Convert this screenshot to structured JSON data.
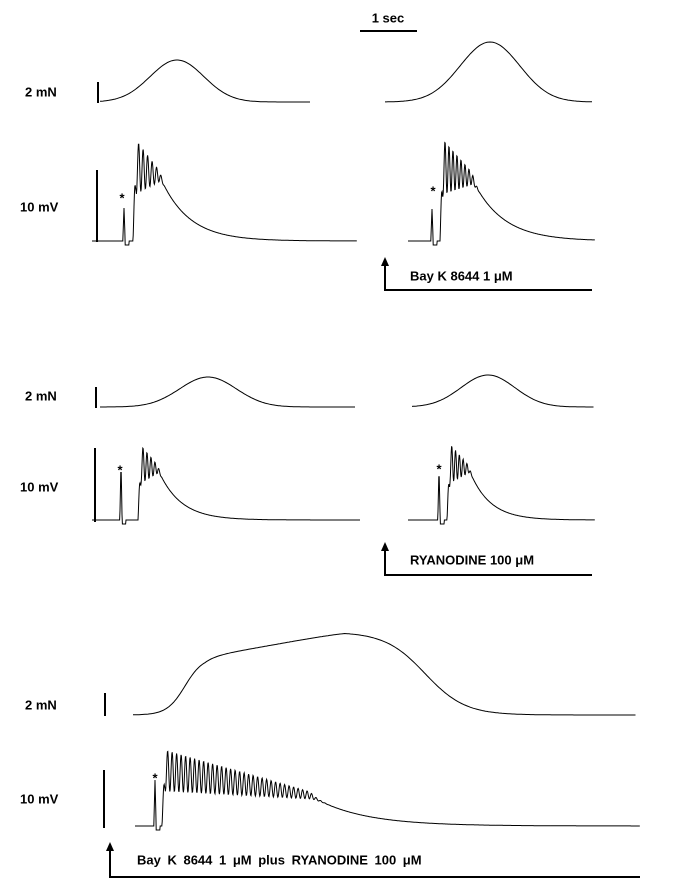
{
  "figure": {
    "time_scale_label": "1 sec",
    "panels": [
      {
        "force_scale_label": "2 mN",
        "voltage_scale_label": "10 mV",
        "stimulus_marks": [
          "*",
          "*"
        ],
        "drug_label": "Bay K 8644 1 μM"
      },
      {
        "force_scale_label": "2 mN",
        "voltage_scale_label": "10 mV",
        "stimulus_marks": [
          "*",
          "*"
        ],
        "drug_label": "RYANODINE 100 μM"
      },
      {
        "force_scale_label": "2 mN",
        "voltage_scale_label": "10 mV",
        "stimulus_marks": [
          "*"
        ],
        "drug_label": "Bay K 8644 1 μM plus RYANODINE 100 μM"
      }
    ]
  }
}
